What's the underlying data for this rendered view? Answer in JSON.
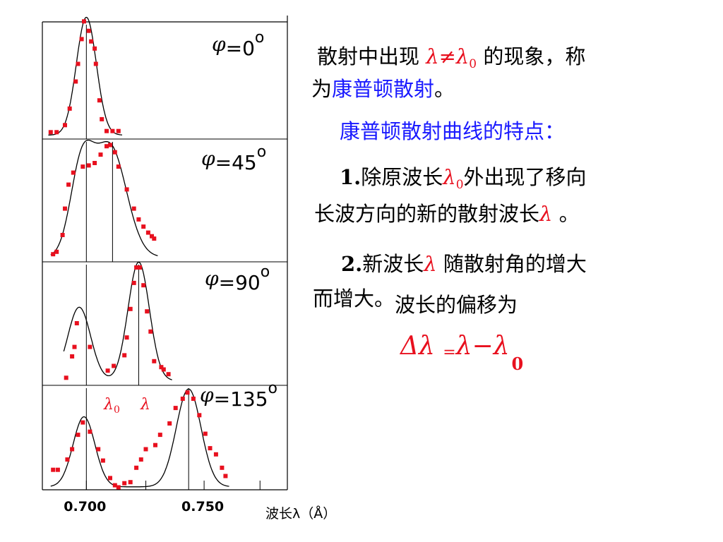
{
  "slide": {
    "intro_part1": "散射中出现 ",
    "intro_lambda": "λ≠λ",
    "intro_lambda_sub": "0",
    "intro_part2": " 的现象，称",
    "intro_part3": "为",
    "intro_term": "康普顿散射",
    "intro_end": "。",
    "features_title": "康普顿散射曲线的特点：",
    "point1_num": "1.",
    "point1_text_a": "除原波长",
    "point1_lambda": "λ",
    "point1_lambda_sub": "0",
    "point1_text_b": "外出现了移向",
    "point1_line2": "长波方向的新的散射波长",
    "point1_lambda2": "λ",
    "point1_end": " 。",
    "point2_num": "2.",
    "point2_text_a": "新波长",
    "point2_lambda": "λ",
    "point2_text_b": " 随散射角的增大",
    "point2_line2": "而增大。",
    "point2_line2b": "波长的偏移为",
    "formula_delta": "Δλ",
    "formula_eq": "=",
    "formula_rhs": "λ−λ",
    "formula_sub": "0"
  },
  "chart_data": {
    "type": "scatter",
    "xlabel": "波长λ（Å）",
    "x_ticks": [
      "0.700",
      "0.750"
    ],
    "xlim": [
      0.682,
      0.785
    ],
    "panel_labels": [
      "φ=0°",
      "φ=45°",
      "φ=90°",
      "φ=135°"
    ],
    "marker_labels": {
      "lambda0": "λ0",
      "lambda": "λ"
    },
    "colors": {
      "points": "#e8101e",
      "curve": "#000000",
      "annotation": "#e8101e"
    },
    "panels": [
      {
        "angle": "0",
        "lambda0": 0.7005,
        "lambda_prime": null,
        "curve_peaks": [
          {
            "center": 0.7005,
            "height": 1.0,
            "width": 0.0042
          }
        ],
        "points": [
          [
            0.6855,
            0.04
          ],
          [
            0.688,
            0.04
          ],
          [
            0.6915,
            0.1
          ],
          [
            0.6935,
            0.24
          ],
          [
            0.696,
            0.47
          ],
          [
            0.697,
            0.62
          ],
          [
            0.6985,
            0.83
          ],
          [
            0.6995,
            0.98
          ],
          [
            0.7015,
            0.9
          ],
          [
            0.7025,
            0.81
          ],
          [
            0.704,
            0.75
          ],
          [
            0.7045,
            0.62
          ],
          [
            0.706,
            0.31
          ],
          [
            0.707,
            0.15
          ],
          [
            0.709,
            0.05
          ],
          [
            0.7115,
            0.05
          ],
          [
            0.714,
            0.05
          ]
        ]
      },
      {
        "angle": "45",
        "lambda0": 0.7005,
        "lambda_prime": 0.7115,
        "curve_peaks": [
          {
            "center": 0.6985,
            "height": 0.72,
            "width": 0.0048
          },
          {
            "center": 0.7105,
            "height": 0.92,
            "width": 0.0068
          }
        ],
        "points": [
          [
            0.6865,
            0.04
          ],
          [
            0.688,
            0.06
          ],
          [
            0.6905,
            0.2
          ],
          [
            0.6915,
            0.42
          ],
          [
            0.693,
            0.62
          ],
          [
            0.695,
            0.72
          ],
          [
            0.699,
            0.77
          ],
          [
            0.7015,
            0.78
          ],
          [
            0.704,
            0.8
          ],
          [
            0.7065,
            0.87
          ],
          [
            0.709,
            0.94
          ],
          [
            0.7105,
            0.95
          ],
          [
            0.7125,
            0.89
          ],
          [
            0.714,
            0.77
          ],
          [
            0.7175,
            0.58
          ],
          [
            0.7205,
            0.42
          ],
          [
            0.7225,
            0.33
          ],
          [
            0.7245,
            0.27
          ],
          [
            0.7265,
            0.22
          ],
          [
            0.728,
            0.19
          ],
          [
            0.729,
            0.17
          ]
        ]
      },
      {
        "angle": "90",
        "lambda0": 0.7005,
        "lambda_prime": 0.7225,
        "curve_peaks": [
          {
            "center": 0.6975,
            "height": 0.62,
            "width": 0.0048
          },
          {
            "center": 0.7225,
            "height": 1.0,
            "width": 0.0045
          }
        ],
        "points": [
          [
            0.692,
            0.04
          ],
          [
            0.6945,
            0.22
          ],
          [
            0.6955,
            0.3
          ],
          [
            0.6965,
            0.5
          ],
          [
            0.702,
            0.3
          ],
          [
            0.7095,
            0.1
          ],
          [
            0.712,
            0.14
          ],
          [
            0.7165,
            0.23
          ],
          [
            0.7175,
            0.38
          ],
          [
            0.719,
            0.62
          ],
          [
            0.7205,
            0.84
          ],
          [
            0.7215,
            0.97
          ],
          [
            0.723,
            0.97
          ],
          [
            0.7245,
            0.82
          ],
          [
            0.726,
            0.6
          ],
          [
            0.7275,
            0.43
          ],
          [
            0.729,
            0.18
          ],
          [
            0.732,
            0.13
          ],
          [
            0.733,
            0.11
          ],
          [
            0.735,
            0.07
          ]
        ]
      },
      {
        "angle": "135",
        "lambda0": 0.7005,
        "lambda_prime": 0.7435,
        "curve_peaks": [
          {
            "center": 0.6995,
            "height": 0.68,
            "width": 0.0046
          },
          {
            "center": 0.7435,
            "height": 0.95,
            "width": 0.0052
          }
        ],
        "points": [
          [
            0.6865,
            0.18
          ],
          [
            0.6885,
            0.18
          ],
          [
            0.6925,
            0.28
          ],
          [
            0.6945,
            0.38
          ],
          [
            0.697,
            0.52
          ],
          [
            0.699,
            0.64
          ],
          [
            0.702,
            0.55
          ],
          [
            0.7055,
            0.38
          ],
          [
            0.7075,
            0.27
          ],
          [
            0.7105,
            0.1
          ],
          [
            0.7125,
            0.03
          ],
          [
            0.714,
            0.01
          ],
          [
            0.7165,
            0.05
          ],
          [
            0.719,
            0.06
          ],
          [
            0.7215,
            0.2
          ],
          [
            0.7235,
            0.28
          ],
          [
            0.7255,
            0.38
          ],
          [
            0.7295,
            0.42
          ],
          [
            0.7315,
            0.52
          ],
          [
            0.7355,
            0.63
          ],
          [
            0.738,
            0.78
          ],
          [
            0.741,
            0.87
          ],
          [
            0.743,
            0.93
          ],
          [
            0.7455,
            0.87
          ],
          [
            0.748,
            0.71
          ],
          [
            0.7505,
            0.53
          ],
          [
            0.7525,
            0.39
          ],
          [
            0.755,
            0.33
          ],
          [
            0.7575,
            0.2
          ],
          [
            0.759,
            0.12
          ]
        ]
      }
    ]
  }
}
